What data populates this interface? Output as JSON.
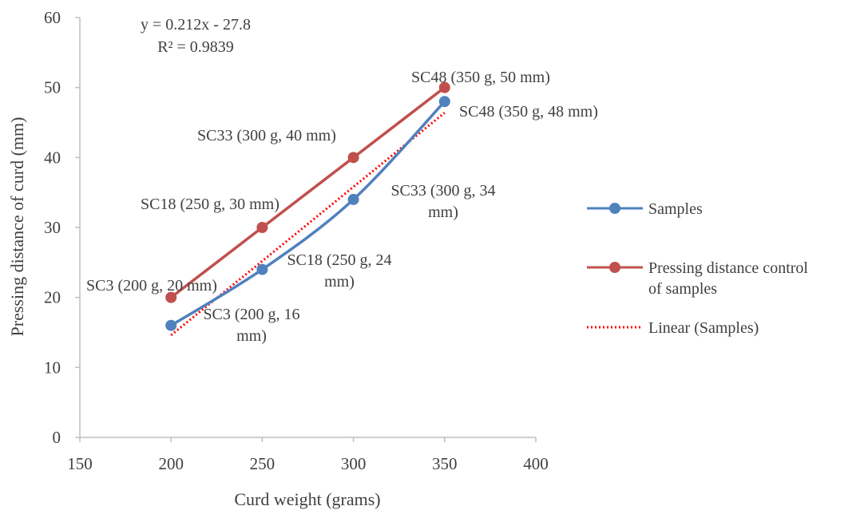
{
  "chart_data": {
    "type": "line",
    "xlabel": "Curd weight (grams)",
    "ylabel": "Pressing distance of curd (mm)",
    "xlim": [
      150,
      400
    ],
    "ylim": [
      0,
      60
    ],
    "xticks": [
      "150",
      "200",
      "250",
      "300",
      "350",
      "400"
    ],
    "yticks": [
      "0",
      "10",
      "20",
      "30",
      "40",
      "50",
      "60"
    ],
    "grid": false,
    "legend_position": "right",
    "series": [
      {
        "name": "Samples",
        "color": "#4F81BD",
        "smooth": true,
        "x": [
          200,
          250,
          300,
          350
        ],
        "y": [
          16,
          24,
          34,
          48
        ],
        "labels": [
          "SC3 (200 g, 16 mm)",
          "SC18 (250 g, 24 mm)",
          "SC33 (300 g, 34 mm)",
          "SC48 (350 g, 48 mm)"
        ]
      },
      {
        "name": "Pressing distance control of samples",
        "color": "#C0504D",
        "smooth": false,
        "x": [
          200,
          250,
          300,
          350
        ],
        "y": [
          20,
          30,
          40,
          50
        ],
        "labels": [
          "SC3 (200 g, 20 mm)",
          "SC18 (250 g, 30 mm)",
          "SC33 (300 g, 40 mm)",
          "SC48 (350 g, 50 mm)"
        ]
      }
    ],
    "trendline": {
      "name": "Linear (Samples)",
      "color": "#FF0000",
      "style": "dotted",
      "slope": 0.212,
      "intercept": -27.8,
      "x_range": [
        200,
        350
      ],
      "equation": "y = 0.212x - 27.8",
      "r_squared": "R² = 0.9839"
    }
  }
}
